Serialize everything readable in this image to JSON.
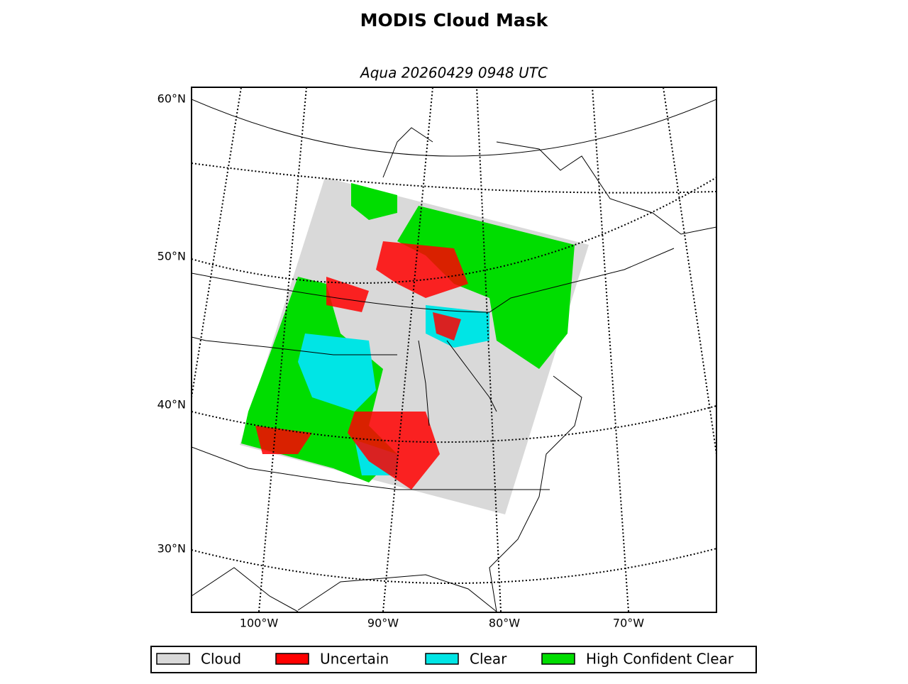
{
  "title": "MODIS Cloud Mask",
  "subtitle": "Aqua 20260429 0948 UTC",
  "lat_labels": [
    "60°N",
    "50°N",
    "40°N",
    "30°N"
  ],
  "lon_labels": [
    "100°W",
    "90°W",
    "80°W",
    "70°W"
  ],
  "legend": [
    {
      "label": "Cloud",
      "color": "#d9d9d9"
    },
    {
      "label": "Uncertain",
      "color": "#ff0000"
    },
    {
      "label": "Clear",
      "color": "#00e5e5"
    },
    {
      "label": "High Confident Clear",
      "color": "#00dd00"
    }
  ]
}
